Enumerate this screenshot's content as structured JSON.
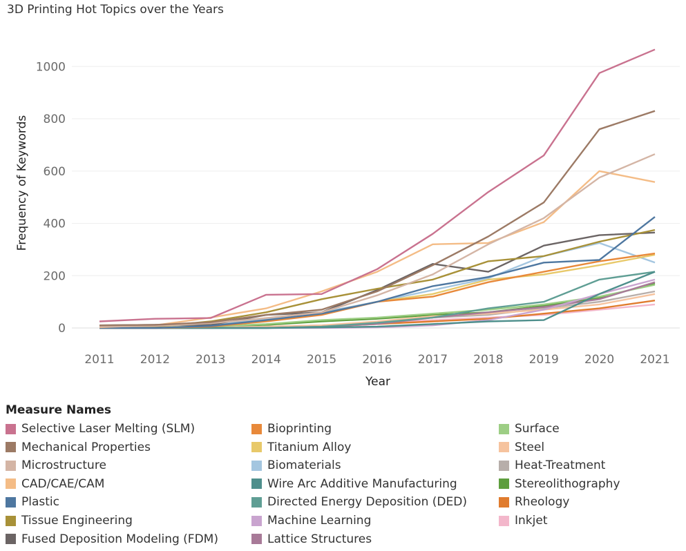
{
  "chart_data": {
    "type": "line",
    "title": "3D Printing Hot Topics over the Years",
    "xlabel": "Year",
    "ylabel": "Frequency of Keywords",
    "x": [
      "2011",
      "2012",
      "2013",
      "2014",
      "2015",
      "2016",
      "2017",
      "2018",
      "2019",
      "2020",
      "2021"
    ],
    "ylim": [
      0,
      1080
    ],
    "yticks": [
      0,
      200,
      400,
      600,
      800,
      1000
    ],
    "grid": true,
    "legend_title": "Measure Names",
    "legend_position": "bottom",
    "series": [
      {
        "name": "Selective Laser Melting (SLM)",
        "color": "#c9728f",
        "values": [
          25,
          35,
          38,
          127,
          130,
          225,
          360,
          520,
          660,
          975,
          1065
        ]
      },
      {
        "name": "Mechanical Properties",
        "color": "#9c7a65",
        "values": [
          10,
          12,
          22,
          50,
          70,
          140,
          240,
          350,
          480,
          760,
          830
        ]
      },
      {
        "name": "Microstructure",
        "color": "#d4b5a5",
        "values": [
          5,
          8,
          18,
          38,
          60,
          125,
          205,
          320,
          420,
          575,
          665
        ]
      },
      {
        "name": "CAD/CAE/CAM",
        "color": "#f4bc86",
        "values": [
          3,
          10,
          40,
          75,
          140,
          215,
          320,
          325,
          405,
          600,
          558
        ]
      },
      {
        "name": "Plastic",
        "color": "#4e77a0",
        "values": [
          0,
          0,
          8,
          30,
          55,
          100,
          160,
          195,
          250,
          260,
          425
        ]
      },
      {
        "name": "Tissue Engineering",
        "color": "#a89138",
        "values": [
          2,
          5,
          25,
          60,
          110,
          150,
          185,
          255,
          275,
          330,
          375
        ]
      },
      {
        "name": "Fused Deposition Modeling (FDM)",
        "color": "#6b6464",
        "values": [
          10,
          12,
          12,
          50,
          60,
          145,
          245,
          215,
          315,
          355,
          365
        ]
      },
      {
        "name": "Bioprinting",
        "color": "#e8893a",
        "values": [
          0,
          0,
          5,
          25,
          50,
          100,
          120,
          175,
          215,
          255,
          285
        ]
      },
      {
        "name": "Titanium Alloy",
        "color": "#e8c96a",
        "values": [
          0,
          2,
          8,
          30,
          55,
          100,
          130,
          185,
          205,
          240,
          280
        ]
      },
      {
        "name": "Biomaterials",
        "color": "#a4c6e0",
        "values": [
          0,
          2,
          10,
          35,
          60,
          100,
          145,
          190,
          275,
          325,
          250
        ]
      },
      {
        "name": "Wire Arc Additive Manufacturing",
        "color": "#4e8f8c",
        "values": [
          0,
          0,
          0,
          0,
          2,
          5,
          15,
          25,
          30,
          130,
          215
        ]
      },
      {
        "name": "Directed Energy Deposition (DED)",
        "color": "#5f9e94",
        "values": [
          0,
          0,
          0,
          0,
          5,
          20,
          40,
          75,
          100,
          185,
          215
        ]
      },
      {
        "name": "Machine Learning",
        "color": "#c9a4cf",
        "values": [
          0,
          0,
          0,
          0,
          0,
          2,
          10,
          30,
          70,
          130,
          185
        ]
      },
      {
        "name": "Lattice Structures",
        "color": "#a87a98",
        "values": [
          0,
          0,
          0,
          0,
          5,
          15,
          40,
          60,
          80,
          110,
          175
        ]
      },
      {
        "name": "Surface",
        "color": "#9dce85",
        "values": [
          0,
          2,
          5,
          15,
          30,
          40,
          55,
          70,
          90,
          120,
          165
        ]
      },
      {
        "name": "Steel",
        "color": "#f6c39e",
        "values": [
          0,
          0,
          2,
          5,
          10,
          25,
          45,
          55,
          70,
          90,
          130
        ]
      },
      {
        "name": "Heat-Treatment",
        "color": "#b7aeaa",
        "values": [
          0,
          0,
          2,
          5,
          10,
          20,
          40,
          50,
          75,
          100,
          140
        ]
      },
      {
        "name": "Stereolithography",
        "color": "#5e9e3e",
        "values": [
          0,
          2,
          5,
          12,
          25,
          35,
          50,
          60,
          85,
          115,
          170
        ]
      },
      {
        "name": "Rheology",
        "color": "#e07c2e",
        "values": [
          0,
          0,
          0,
          2,
          5,
          15,
          25,
          35,
          55,
          75,
          105
        ]
      },
      {
        "name": "Inkjet",
        "color": "#f3b7cb",
        "values": [
          0,
          0,
          2,
          5,
          10,
          20,
          30,
          40,
          50,
          70,
          90
        ]
      }
    ]
  }
}
